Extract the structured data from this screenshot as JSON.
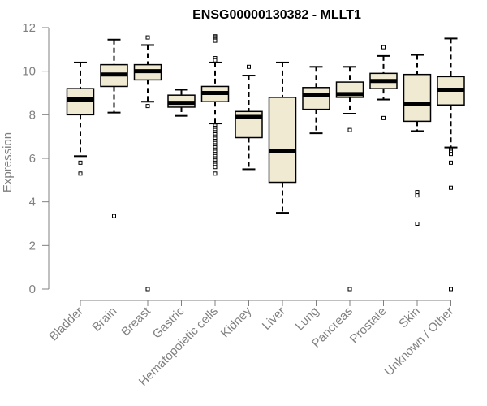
{
  "chart_data": {
    "type": "boxplot",
    "title": "ENSG00000130382 - MLLT1",
    "xlabel": "",
    "ylabel": "Expression",
    "ylim": [
      0,
      12
    ],
    "yticks": [
      0,
      2,
      4,
      6,
      8,
      10,
      12
    ],
    "box_fill": "#f0ead2",
    "box_stroke": "#000000",
    "categories": [
      "Bladder",
      "Brain",
      "Breast",
      "Gastric",
      "Hematopoietic cells",
      "Kidney",
      "Liver",
      "Lung",
      "Pancreas",
      "Prostate",
      "Skin",
      "Unknown / Other"
    ],
    "boxes": [
      {
        "label": "Bladder",
        "lower_whisker": 6.1,
        "q1": 8.0,
        "median": 8.7,
        "q3": 9.2,
        "upper_whisker": 10.4,
        "outliers": [
          5.8,
          5.3
        ]
      },
      {
        "label": "Brain",
        "lower_whisker": 8.1,
        "q1": 9.3,
        "median": 9.85,
        "q3": 10.3,
        "upper_whisker": 11.45,
        "outliers": [
          3.35
        ]
      },
      {
        "label": "Breast",
        "lower_whisker": 8.6,
        "q1": 9.6,
        "median": 10.0,
        "q3": 10.3,
        "upper_whisker": 11.2,
        "outliers": [
          11.55,
          8.4,
          0.0
        ]
      },
      {
        "label": "Gastric",
        "lower_whisker": 7.95,
        "q1": 8.35,
        "median": 8.55,
        "q3": 8.9,
        "upper_whisker": 9.15,
        "outliers": []
      },
      {
        "label": "Hematopoietic cells",
        "lower_whisker": 7.6,
        "q1": 8.6,
        "median": 9.0,
        "q3": 9.3,
        "upper_whisker": 10.4,
        "outliers": [
          11.6,
          11.55,
          11.45,
          11.4,
          10.6,
          10.5,
          7.5,
          7.4,
          7.3,
          7.2,
          7.1,
          7.0,
          6.9,
          6.8,
          6.7,
          6.6,
          6.5,
          6.4,
          6.3,
          6.2,
          6.1,
          6.0,
          5.9,
          5.8,
          5.7,
          5.6,
          5.3
        ]
      },
      {
        "label": "Kidney",
        "lower_whisker": 5.5,
        "q1": 6.95,
        "median": 7.9,
        "q3": 8.15,
        "upper_whisker": 9.8,
        "outliers": [
          10.2
        ]
      },
      {
        "label": "Liver",
        "lower_whisker": 3.5,
        "q1": 4.9,
        "median": 6.35,
        "q3": 8.8,
        "upper_whisker": 10.4,
        "outliers": []
      },
      {
        "label": "Lung",
        "lower_whisker": 7.15,
        "q1": 8.25,
        "median": 8.9,
        "q3": 9.25,
        "upper_whisker": 10.2,
        "outliers": []
      },
      {
        "label": "Pancreas",
        "lower_whisker": 8.05,
        "q1": 8.8,
        "median": 8.95,
        "q3": 9.5,
        "upper_whisker": 10.2,
        "outliers": [
          7.3,
          0.0
        ]
      },
      {
        "label": "Prostate",
        "lower_whisker": 8.7,
        "q1": 9.2,
        "median": 9.55,
        "q3": 9.9,
        "upper_whisker": 10.7,
        "outliers": [
          11.1,
          7.85
        ]
      },
      {
        "label": "Skin",
        "lower_whisker": 7.25,
        "q1": 7.7,
        "median": 8.5,
        "q3": 9.85,
        "upper_whisker": 10.75,
        "outliers": [
          4.45,
          4.3,
          3.0
        ]
      },
      {
        "label": "Unknown / Other",
        "lower_whisker": 6.5,
        "q1": 8.45,
        "median": 9.15,
        "q3": 9.75,
        "upper_whisker": 11.5,
        "outliers": [
          6.4,
          6.3,
          6.2,
          5.8,
          4.65,
          0.0
        ]
      }
    ]
  }
}
